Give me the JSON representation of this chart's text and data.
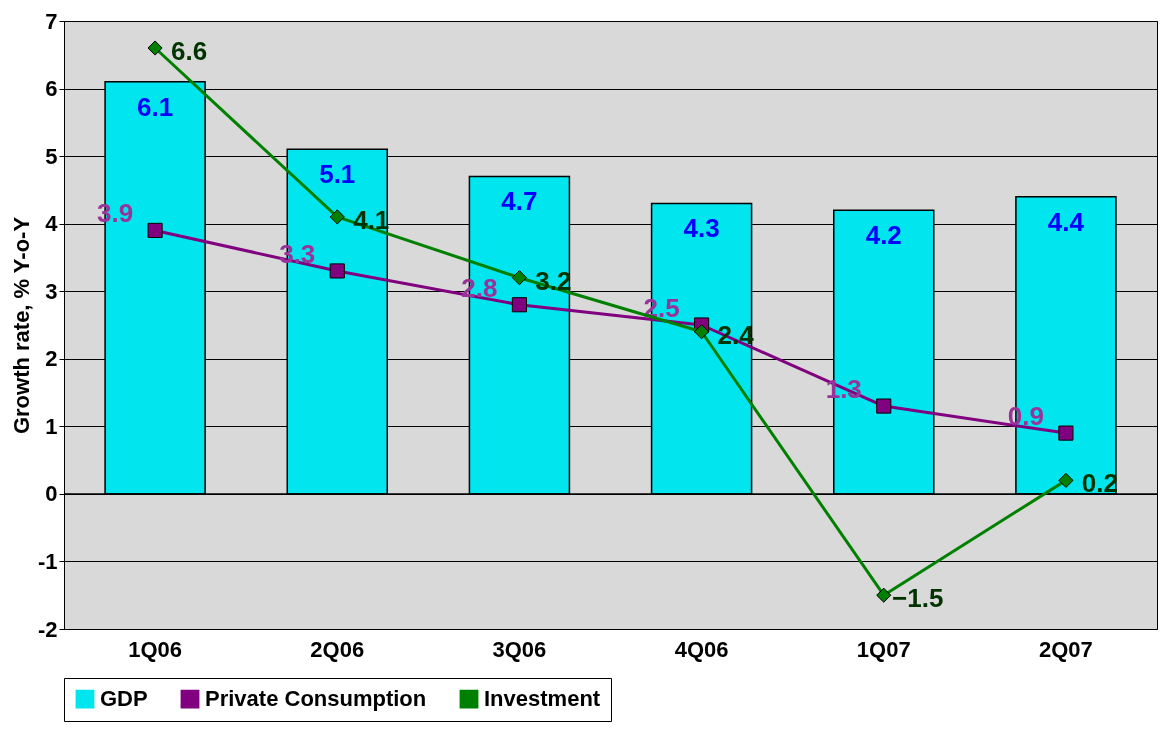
{
  "chart_data": {
    "type": "bar",
    "ylabel": "Growth rate, % Y-o-Y",
    "categories": [
      "1Q06",
      "2Q06",
      "3Q06",
      "4Q06",
      "1Q07",
      "2Q07"
    ],
    "series": [
      {
        "name": "GDP",
        "color": "#00e5ee",
        "values": [
          6.1,
          5.1,
          4.7,
          4.3,
          4.2,
          4.4
        ]
      },
      {
        "name": "Private Consumption",
        "type": "line",
        "marker": "square",
        "color": "#800080",
        "values": [
          3.9,
          3.3,
          2.8,
          2.5,
          1.3,
          0.9
        ]
      },
      {
        "name": "Investment",
        "type": "line",
        "marker": "diamond",
        "color": "#008000",
        "values": [
          6.6,
          4.1,
          3.2,
          2.4,
          -1.5,
          0.2
        ]
      }
    ],
    "ylim": [
      -2,
      7
    ],
    "yticks": [
      -2,
      -1,
      0,
      1,
      2,
      3,
      4,
      5,
      6,
      7
    ],
    "grid": "y",
    "legend": "bottom",
    "data_labels": true
  }
}
